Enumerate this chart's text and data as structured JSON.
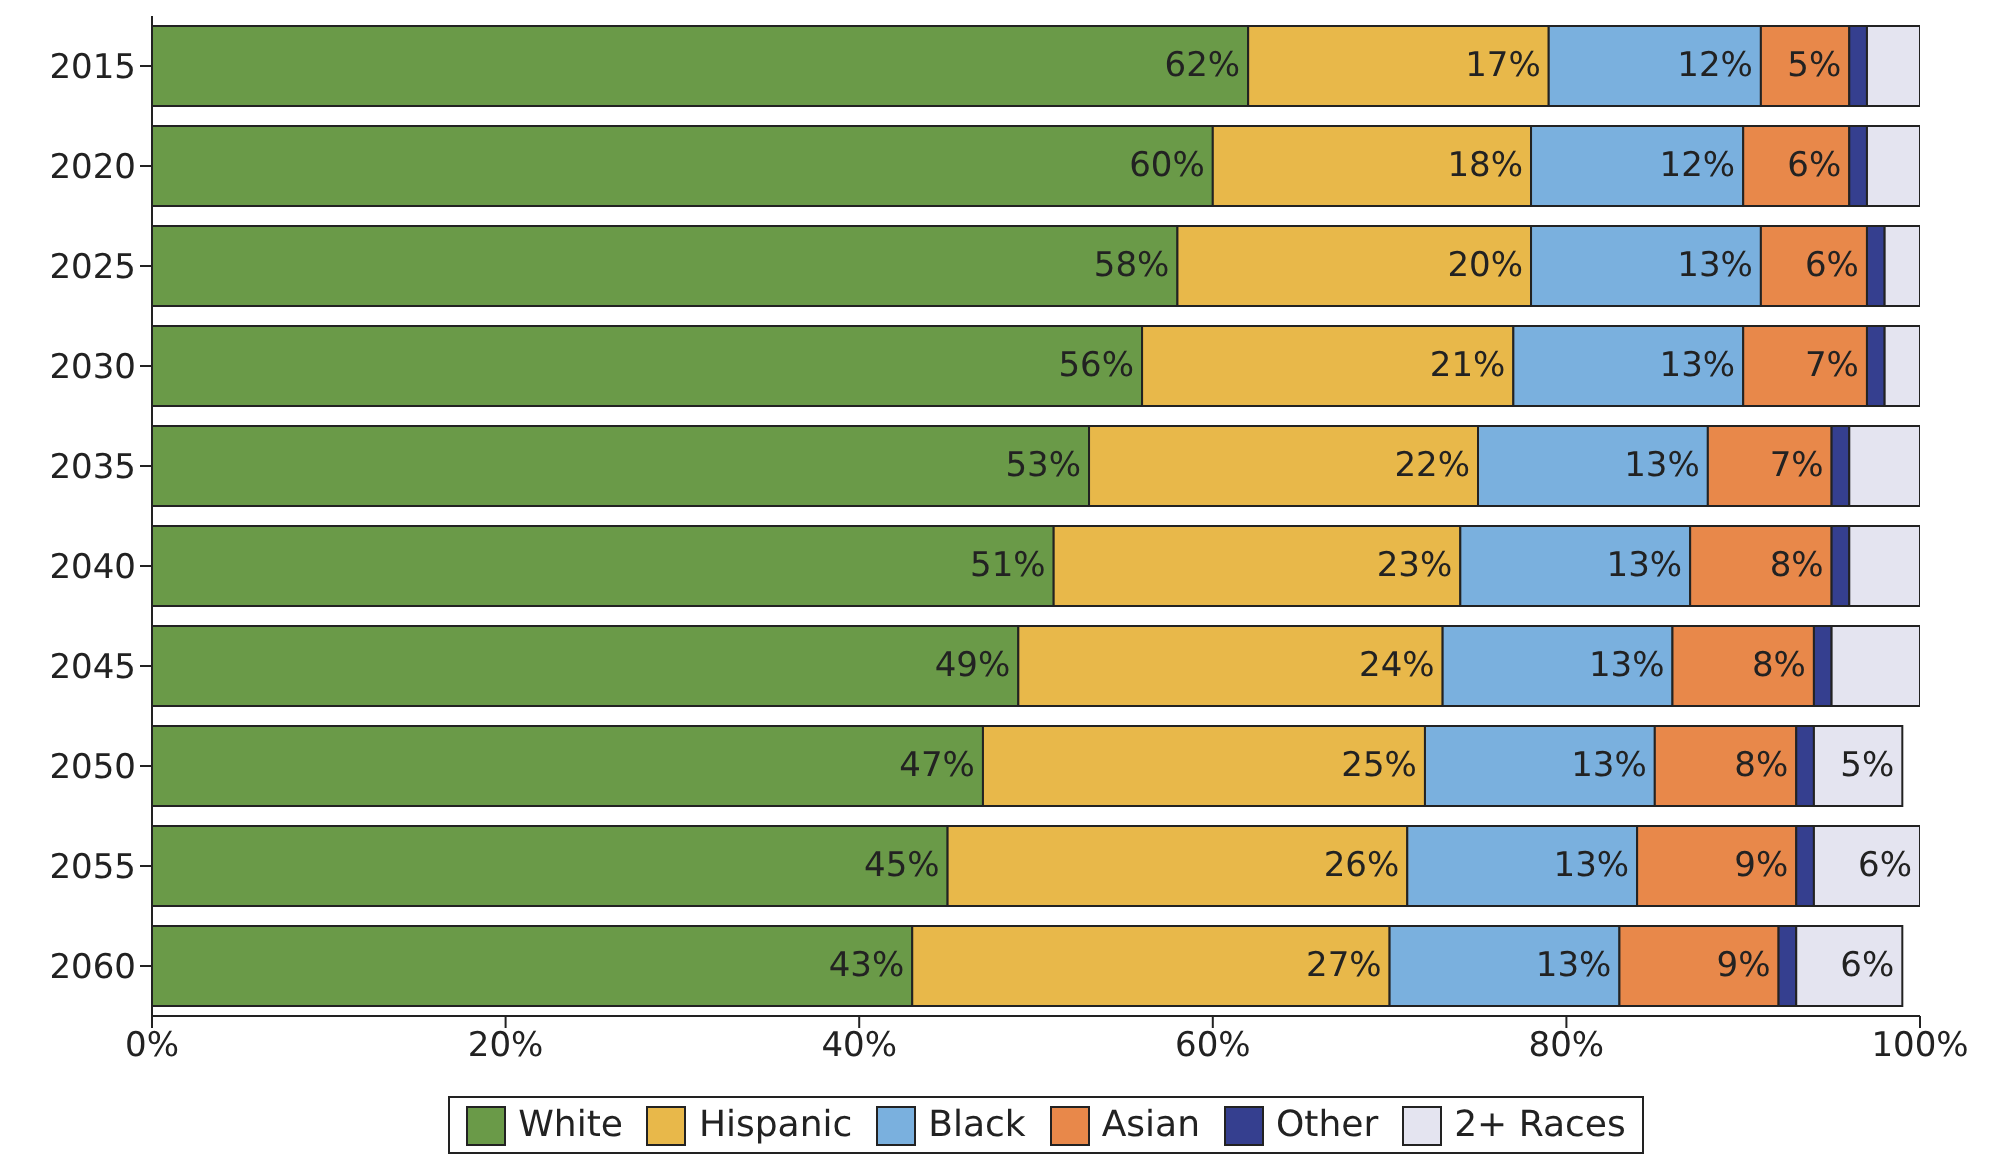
{
  "chart_data": {
    "type": "bar",
    "orientation": "horizontal",
    "stacked": true,
    "categories": [
      "2015",
      "2020",
      "2025",
      "2030",
      "2035",
      "2040",
      "2045",
      "2050",
      "2055",
      "2060"
    ],
    "series": [
      {
        "name": "White",
        "color": "#6a9a48",
        "values": [
          62,
          60,
          58,
          56,
          53,
          51,
          49,
          47,
          45,
          43
        ],
        "value_labels": [
          "62%",
          "60%",
          "58%",
          "56%",
          "53%",
          "51%",
          "49%",
          "47%",
          "45%",
          "43%"
        ]
      },
      {
        "name": "Hispanic",
        "color": "#e8b84a",
        "values": [
          17,
          18,
          20,
          21,
          22,
          23,
          24,
          25,
          26,
          27
        ],
        "value_labels": [
          "17%",
          "18%",
          "20%",
          "21%",
          "22%",
          "23%",
          "24%",
          "25%",
          "26%",
          "27%"
        ]
      },
      {
        "name": "Black",
        "color": "#7ab0de",
        "values": [
          12,
          12,
          13,
          13,
          13,
          13,
          13,
          13,
          13,
          13
        ],
        "value_labels": [
          "12%",
          "12%",
          "13%",
          "13%",
          "13%",
          "13%",
          "13%",
          "13%",
          "13%",
          "13%"
        ]
      },
      {
        "name": "Asian",
        "color": "#e8884a",
        "values": [
          5,
          6,
          6,
          7,
          7,
          8,
          8,
          8,
          9,
          9
        ],
        "value_labels": [
          "5%",
          "6%",
          "6%",
          "7%",
          "7%",
          "8%",
          "8%",
          "8%",
          "9%",
          "9%"
        ]
      },
      {
        "name": "Other",
        "color": "#353f8f",
        "values": [
          1,
          1,
          1,
          1,
          1,
          1,
          1,
          1,
          1,
          1
        ]
      },
      {
        "name": "2+ Races",
        "color": "#e4e4f0",
        "values": [
          3,
          3,
          2,
          2,
          4,
          4,
          5,
          5,
          6,
          6
        ],
        "value_labels": [
          null,
          null,
          null,
          null,
          null,
          null,
          null,
          "5%",
          "6%",
          "6%"
        ]
      }
    ],
    "xlim": [
      0,
      100
    ],
    "xticks": [
      {
        "value": 0,
        "label": "0%"
      },
      {
        "value": 20,
        "label": "20%"
      },
      {
        "value": 40,
        "label": "40%"
      },
      {
        "value": 60,
        "label": "60%"
      },
      {
        "value": 80,
        "label": "80%"
      },
      {
        "value": 100,
        "label": "100%"
      }
    ],
    "grid": false,
    "legend": "bottom"
  }
}
